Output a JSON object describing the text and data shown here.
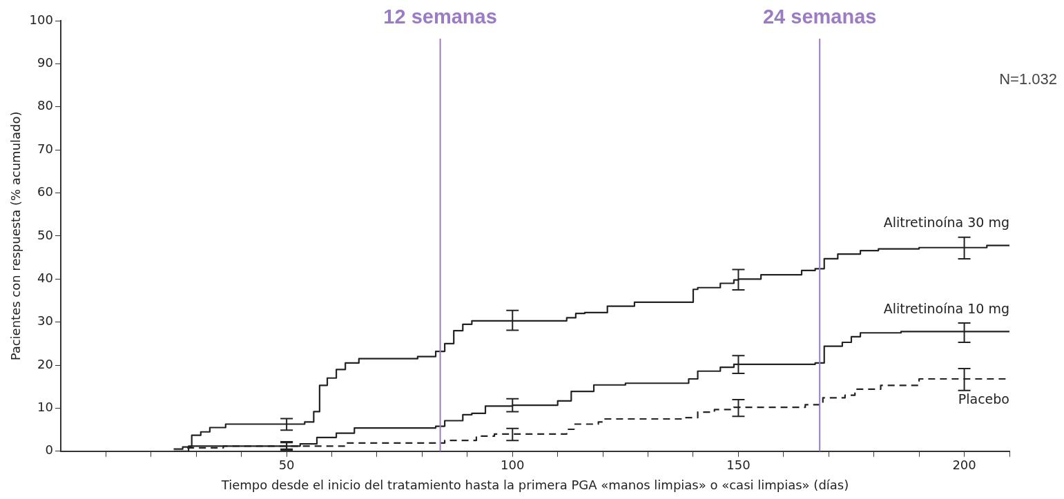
{
  "chart_data": {
    "type": "step",
    "xlabel": "Tiempo desde el inicio del tratamiento hasta la primera PGA «manos limpias» o «casi limpias» (días)",
    "ylabel": "Pacientes con respuesta (% acumulado)",
    "xlim": [
      0,
      210
    ],
    "xticks": [
      {
        "value": 10,
        "label": null
      },
      {
        "value": 20,
        "label": null
      },
      {
        "value": 30,
        "label": null
      },
      {
        "value": 40,
        "label": null
      },
      50,
      {
        "value": 60,
        "label": null
      },
      {
        "value": 70,
        "label": null
      },
      {
        "value": 80,
        "label": null
      },
      {
        "value": 90,
        "label": null
      },
      100,
      {
        "value": 110,
        "label": null
      },
      {
        "value": 120,
        "label": null
      },
      {
        "value": 130,
        "label": null
      },
      {
        "value": 140,
        "label": null
      },
      150,
      {
        "value": 160,
        "label": null
      },
      {
        "value": 170,
        "label": null
      },
      {
        "value": 180,
        "label": null
      },
      {
        "value": 190,
        "label": null
      },
      200,
      {
        "value": 210,
        "label": null
      }
    ],
    "ylim": [
      0,
      100
    ],
    "yticks": [
      0,
      10,
      20,
      30,
      40,
      50,
      60,
      70,
      80,
      90,
      100
    ],
    "grid": false,
    "legend": false,
    "marker": "none",
    "series": [
      {
        "name": "Alitretinoína 30 mg",
        "color": "#222222",
        "line_style": "solid",
        "x": [
          25,
          27,
          29,
          31,
          33,
          36.5,
          50,
          54,
          56,
          57.3,
          59,
          61,
          63,
          66,
          79,
          83,
          85,
          87,
          89,
          91,
          100,
          112,
          114,
          116,
          121,
          127,
          140,
          141,
          146,
          149,
          150,
          155,
          164,
          167,
          169,
          172,
          177,
          181,
          190,
          200,
          205,
          210
        ],
        "values": [
          0.5,
          1,
          3.7,
          4.5,
          5.5,
          6.3,
          6.3,
          6.8,
          9.2,
          15.3,
          17,
          19,
          20.5,
          21.5,
          22,
          23.2,
          25,
          28,
          29.5,
          30.3,
          30.3,
          31,
          32,
          32.2,
          33.7,
          34.6,
          37.6,
          38,
          39,
          39.8,
          40,
          41,
          42,
          42.4,
          44.7,
          45.8,
          46.6,
          47,
          47.3,
          47.3,
          47.8,
          47.8
        ],
        "errors": [
          null,
          null,
          null,
          null,
          null,
          null,
          [
            4.9,
            7.6
          ],
          null,
          null,
          null,
          null,
          null,
          null,
          null,
          null,
          null,
          null,
          null,
          null,
          null,
          [
            28.1,
            32.7
          ],
          null,
          null,
          null,
          null,
          null,
          null,
          null,
          null,
          null,
          [
            37.5,
            42.2
          ],
          null,
          null,
          null,
          null,
          null,
          null,
          null,
          null,
          [
            44.7,
            49.7
          ],
          null,
          null
        ]
      },
      {
        "name": "Alitretinoína 10 mg",
        "color": "#222222",
        "line_style": "solid",
        "x": [
          25,
          28.3,
          50,
          53,
          56.7,
          61,
          65,
          83,
          85,
          89,
          91,
          94,
          100,
          110,
          113,
          118,
          125,
          139,
          141,
          146,
          149,
          150,
          167,
          169,
          173,
          175,
          177,
          186,
          200,
          210
        ],
        "values": [
          0,
          1.2,
          1.2,
          1.7,
          3.2,
          4.2,
          5.4,
          5.8,
          7.1,
          8.5,
          8.8,
          10.5,
          10.7,
          11.7,
          13.9,
          15.4,
          15.8,
          16.8,
          18.6,
          19.5,
          20.2,
          20.2,
          20.5,
          24.4,
          25.3,
          26.6,
          27.5,
          27.8,
          27.8,
          27.8
        ],
        "errors": [
          null,
          null,
          [
            0.5,
            2.2
          ],
          null,
          null,
          null,
          null,
          null,
          null,
          null,
          null,
          null,
          [
            9.2,
            12.2
          ],
          null,
          null,
          null,
          null,
          null,
          null,
          null,
          null,
          [
            18.1,
            22.2
          ],
          null,
          null,
          null,
          null,
          null,
          null,
          [
            25.3,
            29.8
          ],
          null
        ]
      },
      {
        "name": "Placebo",
        "color": "#222222",
        "line_style": "dashed",
        "x": [
          28,
          36,
          50,
          63,
          85,
          92,
          96,
          100,
          112,
          113.6,
          119,
          120,
          138,
          141,
          144.7,
          149,
          150,
          164.8,
          168.7,
          173.6,
          175.8,
          181.5,
          190,
          200,
          210
        ],
        "values": [
          0.8,
          1.2,
          1.2,
          1.9,
          2.5,
          3.5,
          4,
          4,
          5.1,
          6.3,
          6.8,
          7.5,
          7.8,
          9.1,
          9.7,
          10.2,
          10.2,
          10.8,
          12.4,
          13,
          14.4,
          15.3,
          16.8,
          16.8,
          16.8
        ],
        "errors": [
          null,
          null,
          [
            0.3,
            2
          ],
          null,
          null,
          null,
          null,
          [
            2.5,
            5.3
          ],
          null,
          null,
          null,
          null,
          null,
          null,
          null,
          null,
          [
            8.1,
            12
          ],
          null,
          null,
          null,
          null,
          null,
          null,
          [
            14.1,
            19.2
          ],
          null
        ]
      }
    ],
    "ref_lines": [
      {
        "axis": "x",
        "value": 84,
        "label": "12 semanas",
        "color": "#9b7cc4"
      },
      {
        "axis": "x",
        "value": 168,
        "label": "24 semanas",
        "color": "#9b7cc4"
      }
    ],
    "annotations": [
      "N=1.032"
    ]
  }
}
